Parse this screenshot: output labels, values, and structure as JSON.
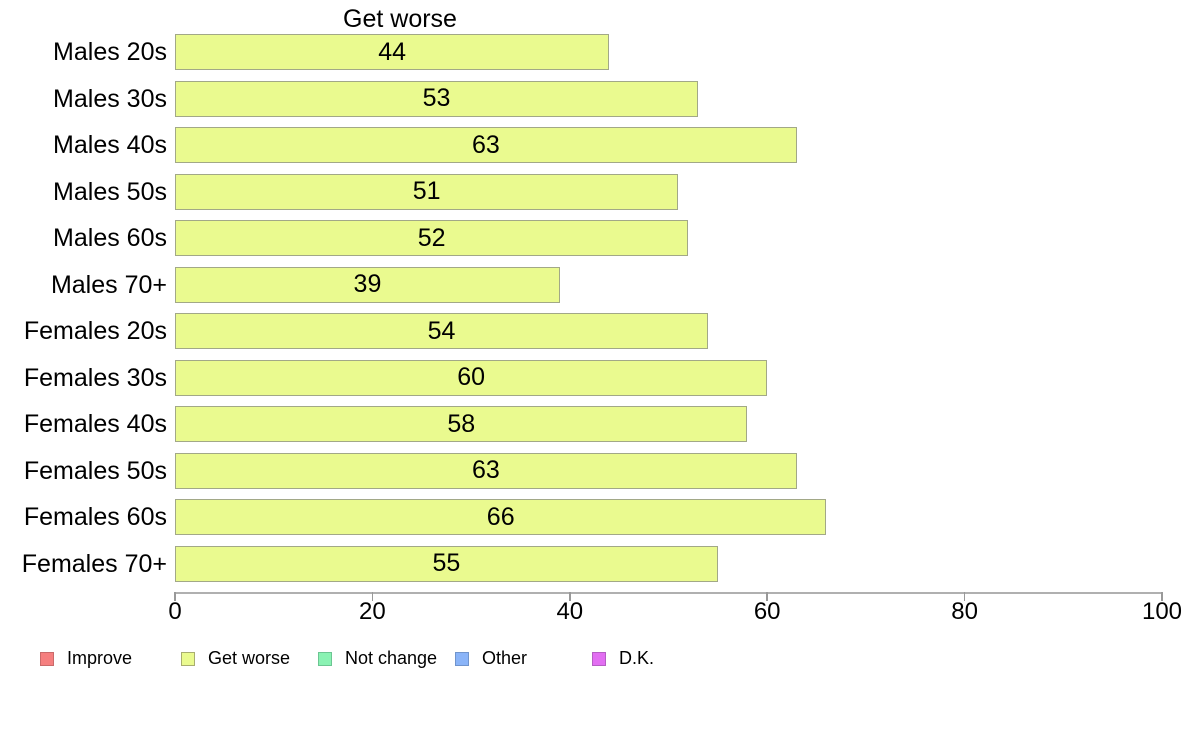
{
  "chart_data": {
    "type": "bar",
    "orientation": "horizontal",
    "title": "Get worse",
    "categories": [
      "Males 20s",
      "Males 30s",
      "Males 40s",
      "Males 50s",
      "Males 60s",
      "Males 70+",
      "Females 20s",
      "Females 30s",
      "Females 40s",
      "Females 50s",
      "Females 60s",
      "Females 70+"
    ],
    "values": [
      44,
      53,
      63,
      51,
      52,
      39,
      54,
      60,
      58,
      63,
      66,
      55
    ],
    "value_labels_shown": true,
    "xlim": [
      0,
      100
    ],
    "x_ticks": [
      0,
      20,
      40,
      60,
      80,
      100
    ],
    "grid": false,
    "legend_position": "bottom",
    "bar_color": "#eafa8f",
    "bar_border_color": "#a2a887"
  },
  "axis": {
    "line_color": "#b0b0b0",
    "tick_color": "#999999",
    "label_color": "#000000"
  },
  "legend": {
    "items": [
      {
        "label": "Improve",
        "color": "#f57f7f",
        "border": "#c96a6a"
      },
      {
        "label": "Get worse",
        "color": "#eafa8f",
        "border": "#a8ad6f"
      },
      {
        "label": "Not change",
        "color": "#8af2b3",
        "border": "#6cc592"
      },
      {
        "label": "Other",
        "color": "#8ab4f8",
        "border": "#7094cc"
      },
      {
        "label": "D.K.",
        "color": "#e26ef2",
        "border": "#b55ec4"
      }
    ]
  }
}
